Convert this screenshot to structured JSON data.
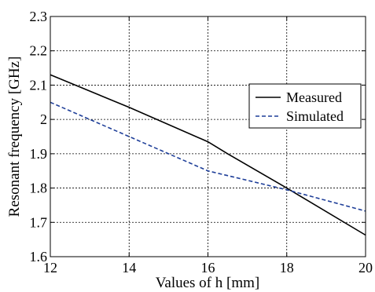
{
  "chart_data": {
    "type": "line",
    "title": "",
    "xlabel": "Values of h [mm]",
    "ylabel": "Resonant frequency [GHz]",
    "xlim": [
      12,
      20
    ],
    "ylim": [
      1.6,
      2.3
    ],
    "xticks": [
      12,
      14,
      16,
      18,
      20
    ],
    "xtick_labels": [
      "12",
      "14",
      "16",
      "18",
      "20"
    ],
    "yticks": [
      1.6,
      1.7,
      1.8,
      1.9,
      2.0,
      2.1,
      2.2,
      2.3
    ],
    "ytick_labels": [
      "1.6",
      "1.7",
      "1.8",
      "1.9",
      "2",
      "2.1",
      "2.2",
      "2.3"
    ],
    "grid": true,
    "legend_position": "right",
    "series": [
      {
        "name": "Measured",
        "color": "#000000",
        "style": "solid",
        "x": [
          12,
          14,
          16,
          16.5,
          18,
          20
        ],
        "y": [
          2.13,
          2.035,
          1.935,
          1.9,
          1.8,
          1.663
        ]
      },
      {
        "name": "Simulated",
        "color": "#1f3f99",
        "style": "dashed",
        "x": [
          12,
          14,
          16,
          18,
          20
        ],
        "y": [
          2.05,
          1.95,
          1.85,
          1.795,
          1.733
        ]
      }
    ]
  }
}
